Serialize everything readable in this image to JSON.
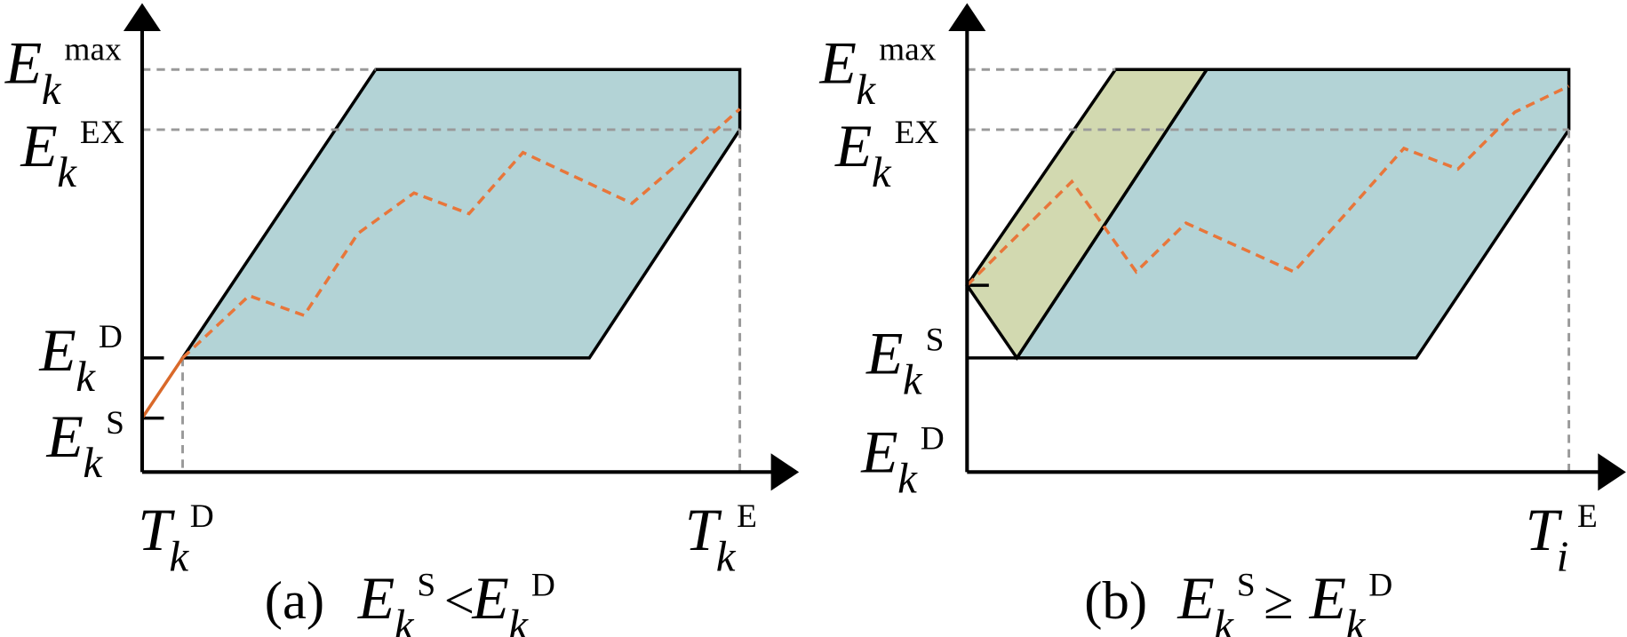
{
  "panels": [
    {
      "y_labels": [
        {
          "base": "E",
          "sub": "k",
          "sup": "max"
        },
        {
          "base": "E",
          "sub": "k",
          "sup": "EX"
        },
        {
          "base": "E",
          "sub": "k",
          "sup": "D"
        },
        {
          "base": "E",
          "sub": "k",
          "sup": "S"
        }
      ],
      "x_labels": [
        {
          "base": "T",
          "sub": "k",
          "sup": "D"
        },
        {
          "base": "T",
          "sub": "k",
          "sup": "E"
        }
      ],
      "caption": {
        "prefix": "(a)",
        "left": {
          "base": "E",
          "sub": "k",
          "sup": "S"
        },
        "relation": "<",
        "right": {
          "base": "E",
          "sub": "k",
          "sup": "D"
        }
      }
    },
    {
      "y_labels": [
        {
          "base": "E",
          "sub": "k",
          "sup": "max"
        },
        {
          "base": "E",
          "sub": "k",
          "sup": "EX"
        },
        {
          "base": "E",
          "sub": "k",
          "sup": "S"
        },
        {
          "base": "E",
          "sub": "k",
          "sup": "D"
        }
      ],
      "x_labels": [
        {
          "base": "T",
          "sub": "i",
          "sup": "E"
        }
      ],
      "caption": {
        "prefix": "(b)",
        "left": {
          "base": "E",
          "sub": "k",
          "sup": "S"
        },
        "relation": "≥",
        "right": {
          "base": "E",
          "sub": "k",
          "sup": "D"
        }
      }
    }
  ]
}
